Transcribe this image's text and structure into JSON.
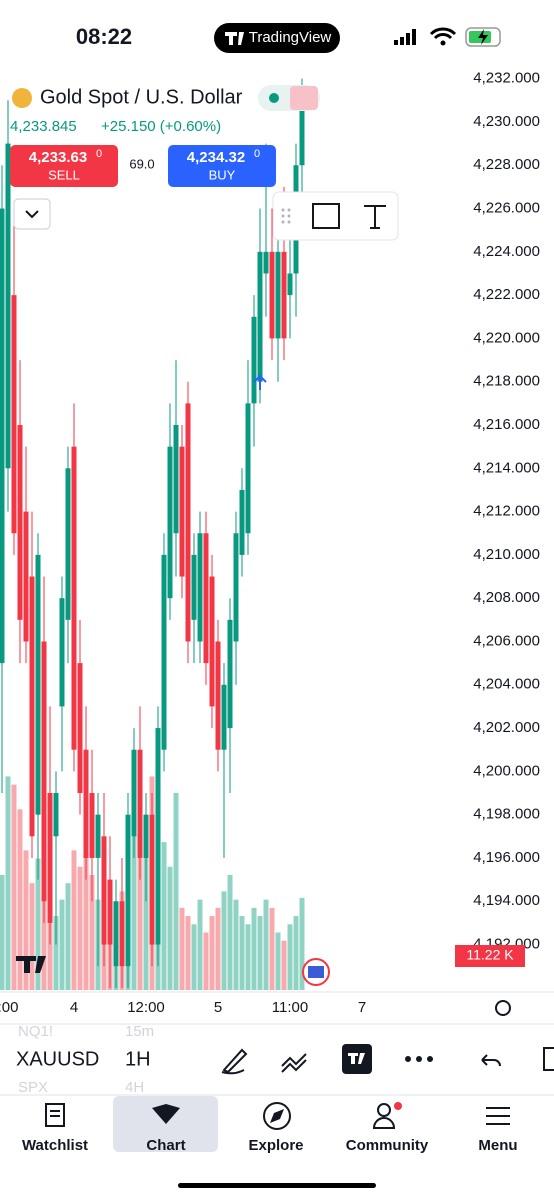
{
  "status_bar": {
    "time": "08:22",
    "app": "TradingView"
  },
  "header": {
    "title": "Gold Spot / U.S. Dollar",
    "last_price": "4,233.845",
    "change": "+25.150 (+0.60%)",
    "sell_price": "4,233.63",
    "sell_price_sup": "0",
    "sell_label": "SELL",
    "spread": "69.0",
    "buy_price": "4,234.32",
    "buy_price_sup": "0",
    "buy_label": "BUY"
  },
  "chart_data": {
    "type": "candlestick",
    "categories": [
      null,
      ":00",
      null,
      null,
      null,
      null,
      null,
      null,
      null,
      null,
      null,
      null,
      "4",
      null,
      null,
      null,
      null,
      null,
      null,
      null,
      null,
      null,
      null,
      null,
      "12:00",
      null,
      null,
      null,
      null,
      null,
      null,
      null,
      null,
      null,
      null,
      null,
      "5",
      null,
      null,
      null,
      null,
      null,
      null,
      null,
      null,
      null,
      null,
      null,
      "11:00",
      null,
      null,
      null,
      null,
      null,
      null,
      null,
      null,
      null,
      null,
      null,
      "7"
    ],
    "open": [
      4205,
      4214,
      4222,
      4216,
      4212,
      4209,
      4198,
      4206,
      4199,
      4197,
      4203,
      4207,
      4215,
      4205,
      4201,
      4199,
      4196,
      4197,
      4195,
      4191,
      4194,
      4191,
      4197,
      4201,
      4196,
      4198,
      4192,
      4201,
      4208,
      4211,
      4215,
      4217,
      4207,
      4206,
      4211,
      4209,
      4206,
      4201,
      4202,
      4206,
      4210,
      4211,
      4217,
      4218,
      4223,
      4224,
      4220,
      4224,
      4222,
      4223,
      4228,
      null,
      null,
      null,
      null,
      null,
      null,
      null,
      null,
      null,
      null
    ],
    "high": [
      4228,
      4231,
      4226,
      4219,
      4215,
      4212,
      4211,
      4209,
      4203,
      4200,
      4209,
      4215,
      4217,
      4207,
      4203,
      4201,
      4199,
      4199,
      4197,
      4195,
      4196,
      4199,
      4202,
      4203,
      4199,
      4199,
      4203,
      4211,
      4217,
      4219,
      4216,
      4218,
      4211,
      4212,
      4212,
      4210,
      4207,
      4205,
      4208,
      4212,
      4214,
      4219,
      4222,
      4226,
      4229,
      4226,
      4225,
      4227,
      4225,
      4229,
      4232,
      null,
      null,
      null,
      null,
      null,
      null,
      null,
      null,
      null,
      null
    ],
    "low": [
      4199,
      4212,
      4210,
      4205,
      4205,
      4196,
      4195,
      4193,
      4192,
      4192,
      4200,
      4205,
      4200,
      4198,
      4195,
      4194,
      4191,
      4191,
      4190,
      4190,
      4190,
      4190,
      4196,
      4195,
      4194,
      4191,
      4191,
      4200,
      4207,
      4209,
      4208,
      4205,
      4205,
      4205,
      4204,
      4202,
      4200,
      4196,
      4199,
      4204,
      4209,
      4210,
      4215,
      4217,
      4221,
      4219,
      4218,
      4219,
      4220,
      4221,
      4225,
      null,
      null,
      null,
      null,
      null,
      null,
      null,
      null,
      null,
      null
    ],
    "close": [
      4226,
      4229,
      4211,
      4207,
      4206,
      4197,
      4210,
      4194,
      4193,
      4199,
      4208,
      4214,
      4201,
      4199,
      4196,
      4196,
      4198,
      4192,
      4192,
      4194,
      4191,
      4198,
      4201,
      4196,
      4198,
      4192,
      4202,
      4210,
      4215,
      4216,
      4209,
      4206,
      4210,
      4211,
      4205,
      4203,
      4201,
      4204,
      4207,
      4211,
      4213,
      4217,
      4221,
      4224,
      4224,
      4220,
      4224,
      4220,
      4223,
      4228,
      4231,
      null,
      null,
      null,
      null,
      null,
      null,
      null,
      null,
      null,
      null
    ],
    "volume": [
      14,
      26,
      25,
      22,
      17,
      13,
      16,
      12,
      10,
      9,
      11,
      13,
      17,
      15,
      20,
      14,
      11,
      13,
      9,
      10,
      12,
      16,
      22,
      24,
      19,
      26,
      23,
      18,
      15,
      24,
      10,
      9,
      8,
      11,
      7,
      9,
      10,
      12,
      14,
      11,
      9,
      8,
      10,
      9,
      11,
      10,
      7,
      6,
      8,
      9,
      11.22,
      null,
      null,
      null,
      null,
      null,
      null,
      null,
      null,
      null,
      null
    ],
    "volume_badge": "11.22 K",
    "volume_lim": [
      0,
      28
    ],
    "ylim": [
      4189.9,
      4232.4
    ],
    "yticks": [
      {
        "value": 4232,
        "label": "4,232.000"
      },
      {
        "value": 4230,
        "label": "4,230.000"
      },
      {
        "value": 4228,
        "label": "4,228.000"
      },
      {
        "value": 4226,
        "label": "4,226.000"
      },
      {
        "value": 4224,
        "label": "4,224.000"
      },
      {
        "value": 4222,
        "label": "4,222.000"
      },
      {
        "value": 4220,
        "label": "4,220.000"
      },
      {
        "value": 4218,
        "label": "4,218.000"
      },
      {
        "value": 4216,
        "label": "4,216.000"
      },
      {
        "value": 4214,
        "label": "4,214.000"
      },
      {
        "value": 4212,
        "label": "4,212.000"
      },
      {
        "value": 4210,
        "label": "4,210.000"
      },
      {
        "value": 4208,
        "label": "4,208.000"
      },
      {
        "value": 4206,
        "label": "4,206.000"
      },
      {
        "value": 4204,
        "label": "4,204.000"
      },
      {
        "value": 4202,
        "label": "4,202.000"
      },
      {
        "value": 4200,
        "label": "4,200.000"
      },
      {
        "value": 4198,
        "label": "4,198.000"
      },
      {
        "value": 4196,
        "label": "4,196.000"
      },
      {
        "value": 4194,
        "label": "4,194.000"
      },
      {
        "value": 4192,
        "label": "4,192.000"
      }
    ],
    "up_color": "#089981",
    "down_color": "#f23645",
    "up_volume_color": "#8fd3c4",
    "down_volume_color": "#f7a9ae"
  },
  "symbol_bar": {
    "prev_symbol": "NQ1!",
    "prev_interval": "15m",
    "symbol": "XAUUSD",
    "interval": "1H",
    "next_symbol": "SPX",
    "next_interval": "4H"
  },
  "tabs": [
    "Watchlist",
    "Chart",
    "Explore",
    "Community",
    "Menu"
  ]
}
